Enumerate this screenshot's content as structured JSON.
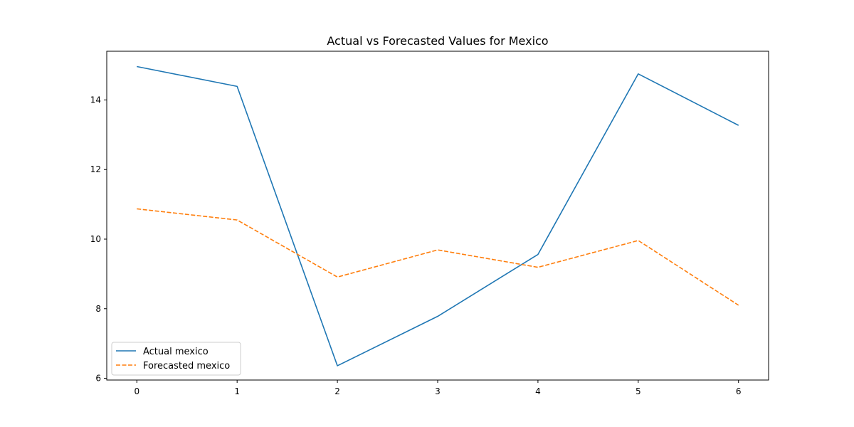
{
  "chart_data": {
    "type": "line",
    "title": "Actual vs Forecasted Values for Mexico",
    "xlabel": "",
    "ylabel": "",
    "x": [
      0,
      1,
      2,
      3,
      4,
      5,
      6
    ],
    "xlim": [
      -0.3,
      6.3
    ],
    "ylim": [
      5.95,
      15.4
    ],
    "xticks": [
      0,
      1,
      2,
      3,
      4,
      5,
      6
    ],
    "yticks": [
      6,
      8,
      10,
      12,
      14
    ],
    "grid": false,
    "legend_position": "lower-left",
    "series": [
      {
        "name": "Actual mexico",
        "color": "#1f77b4",
        "style": "solid",
        "values": [
          14.96,
          14.39,
          6.36,
          7.78,
          9.56,
          14.75,
          13.27
        ]
      },
      {
        "name": "Forecasted mexico",
        "color": "#ff7f0e",
        "style": "dashed",
        "values": [
          10.87,
          10.55,
          8.91,
          9.69,
          9.19,
          9.96,
          8.1
        ]
      }
    ]
  }
}
